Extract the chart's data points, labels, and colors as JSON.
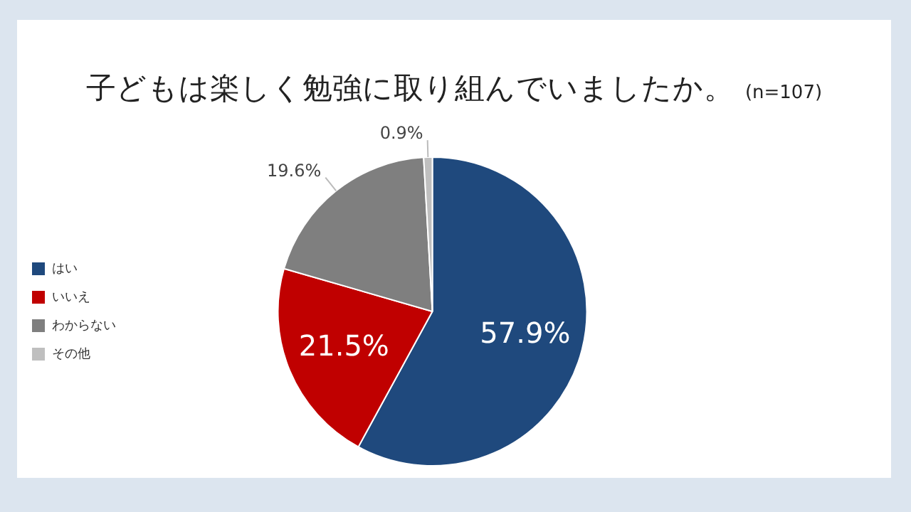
{
  "chart_data": {
    "type": "pie",
    "title": "子どもは楽しく勉強に取り組んでいましたか。",
    "subtitle": "(n=107)",
    "categories": [
      "はい",
      "いいえ",
      "わからない",
      "その他"
    ],
    "values": [
      57.9,
      21.5,
      19.6,
      0.9
    ],
    "colors": [
      "#1f497d",
      "#c00000",
      "#7f7f7f",
      "#bfbfbf"
    ],
    "value_labels": [
      "57.9%",
      "21.5%",
      "19.6%",
      "0.9%"
    ],
    "legend": "left"
  }
}
